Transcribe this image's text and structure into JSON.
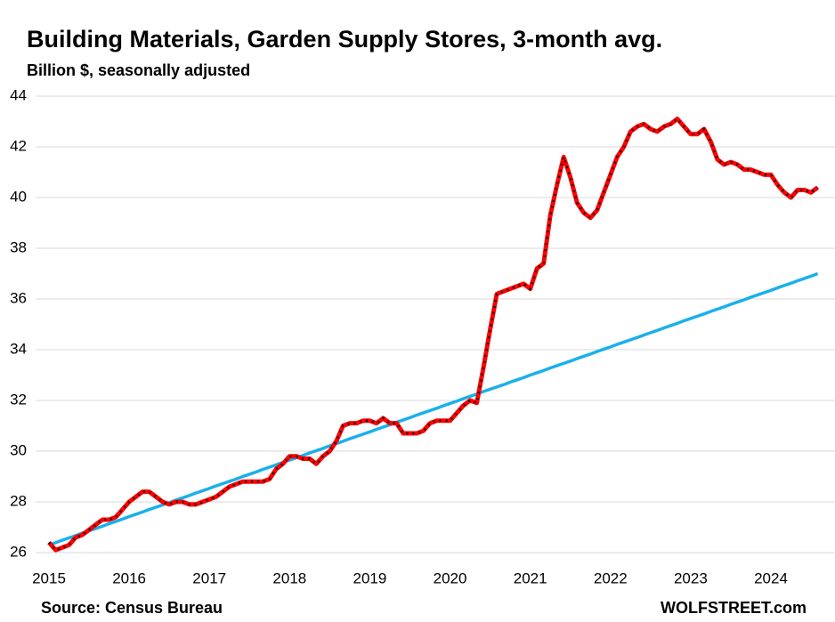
{
  "chart_data": {
    "type": "line",
    "title": "Building Materials, Garden Supply Stores, 3-month avg.",
    "subtitle": "Billion $, seasonally adjusted",
    "source": "Source: Census Bureau",
    "brand": "WOLFSTREET.com",
    "categories": [
      "2015",
      null,
      null,
      null,
      null,
      null,
      null,
      null,
      null,
      null,
      null,
      null,
      "2016",
      null,
      null,
      null,
      null,
      null,
      null,
      null,
      null,
      null,
      null,
      null,
      "2017",
      null,
      null,
      null,
      null,
      null,
      null,
      null,
      null,
      null,
      null,
      null,
      "2018",
      null,
      null,
      null,
      null,
      null,
      null,
      null,
      null,
      null,
      null,
      null,
      "2019",
      null,
      null,
      null,
      null,
      null,
      null,
      null,
      null,
      null,
      null,
      null,
      "2020",
      null,
      null,
      null,
      null,
      null,
      null,
      null,
      null,
      null,
      null,
      null,
      "2021",
      null,
      null,
      null,
      null,
      null,
      null,
      null,
      null,
      null,
      null,
      null,
      "2022",
      null,
      null,
      null,
      null,
      null,
      null,
      null,
      null,
      null,
      null,
      null,
      "2023",
      null,
      null,
      null,
      null,
      null,
      null,
      null,
      null,
      null,
      null,
      null,
      "2024",
      null,
      null,
      null,
      null,
      null,
      null,
      null
    ],
    "series": [
      {
        "color": "#ff0000",
        "values": [
          26.4,
          26.1,
          26.2,
          26.3,
          26.6,
          26.7,
          26.9,
          27.1,
          27.3,
          27.3,
          27.4,
          27.7,
          28.0,
          28.2,
          28.4,
          28.4,
          28.2,
          28.0,
          27.9,
          28.0,
          28.0,
          27.9,
          27.9,
          28.0,
          28.1,
          28.2,
          28.4,
          28.6,
          28.7,
          28.8,
          28.8,
          28.8,
          28.8,
          28.9,
          29.3,
          29.5,
          29.8,
          29.8,
          29.7,
          29.7,
          29.5,
          29.8,
          30.0,
          30.4,
          31.0,
          31.1,
          31.1,
          31.2,
          31.2,
          31.1,
          31.3,
          31.1,
          31.1,
          30.7,
          30.7,
          30.7,
          30.8,
          31.1,
          31.2,
          31.2,
          31.2,
          31.5,
          31.8,
          32.0,
          31.9,
          33.3,
          34.8,
          36.2,
          36.3,
          36.4,
          36.5,
          36.6,
          36.4,
          37.2,
          37.4,
          39.3,
          40.5,
          41.6,
          40.8,
          39.8,
          39.4,
          39.2,
          39.5,
          40.2,
          40.9,
          41.6,
          42.0,
          42.6,
          42.8,
          42.9,
          42.7,
          42.6,
          42.8,
          42.9,
          43.1,
          42.8,
          42.5,
          42.5,
          42.7,
          42.2,
          41.5,
          41.3,
          41.4,
          41.3,
          41.1,
          41.1,
          41.0,
          40.9,
          40.9,
          40.5,
          40.2,
          40.0,
          40.3,
          40.3,
          40.2,
          40.4
        ]
      },
      {
        "color": "#1ab0ea",
        "values": [
          26.3,
          26.39,
          26.49,
          26.58,
          26.67,
          26.77,
          26.86,
          26.95,
          27.04,
          27.14,
          27.23,
          27.32,
          27.42,
          27.51,
          27.6,
          27.7,
          27.79,
          27.88,
          27.97,
          28.07,
          28.16,
          28.25,
          28.35,
          28.44,
          28.53,
          28.63,
          28.72,
          28.81,
          28.9,
          29.0,
          29.09,
          29.18,
          29.28,
          29.37,
          29.46,
          29.56,
          29.65,
          29.74,
          29.83,
          29.93,
          30.02,
          30.11,
          30.21,
          30.3,
          30.39,
          30.49,
          30.58,
          30.67,
          30.76,
          30.86,
          30.95,
          31.04,
          31.14,
          31.23,
          31.32,
          31.42,
          31.51,
          31.6,
          31.69,
          31.79,
          31.88,
          31.97,
          32.07,
          32.16,
          32.25,
          32.35,
          32.44,
          32.53,
          32.62,
          32.72,
          32.81,
          32.9,
          33.0,
          33.09,
          33.18,
          33.28,
          33.37,
          33.46,
          33.55,
          33.65,
          33.74,
          33.83,
          33.93,
          34.02,
          34.11,
          34.21,
          34.3,
          34.39,
          34.48,
          34.58,
          34.67,
          34.76,
          34.86,
          34.95,
          35.04,
          35.14,
          35.23,
          35.32,
          35.41,
          35.51,
          35.6,
          35.69,
          35.79,
          35.88,
          35.97,
          36.07,
          36.16,
          36.25,
          36.34,
          36.44,
          36.53,
          36.62,
          36.72,
          36.81,
          36.9,
          37.0
        ]
      }
    ],
    "ylim": [
      26,
      44
    ],
    "yticks": [
      26,
      28,
      30,
      32,
      34,
      36,
      38,
      40,
      42,
      44
    ],
    "grid": true
  }
}
